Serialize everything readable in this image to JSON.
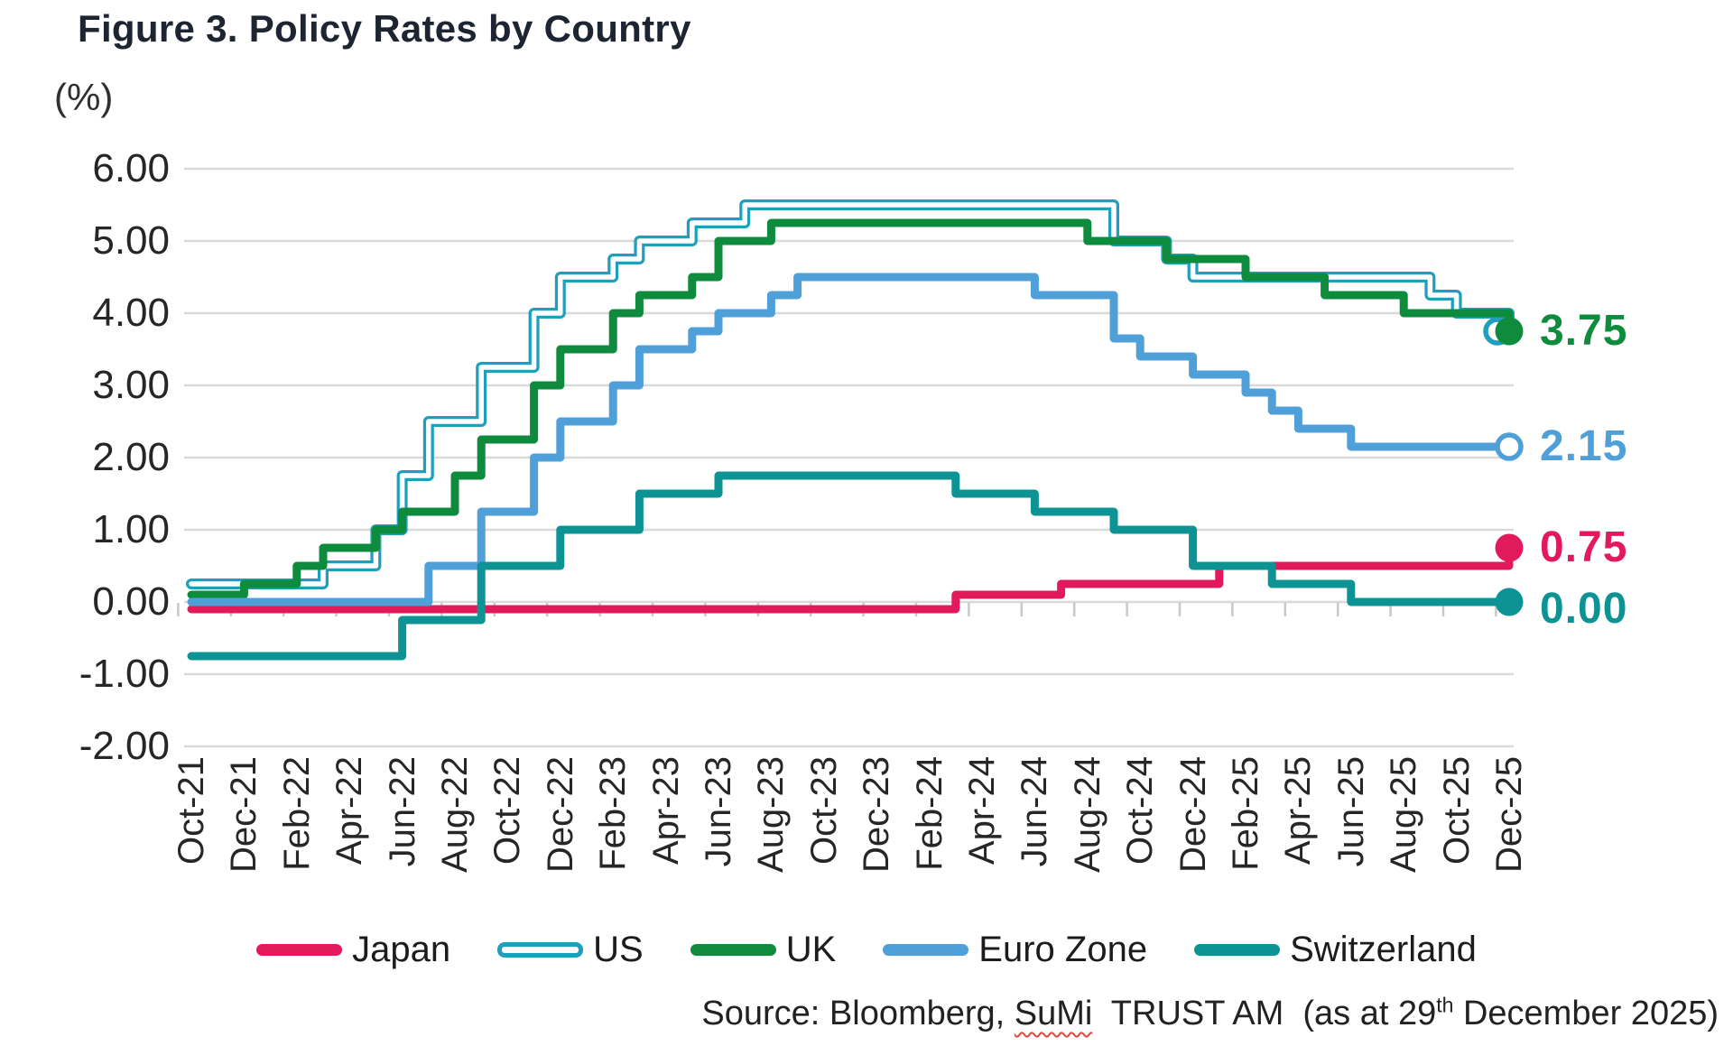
{
  "title": "Figure 3. Policy Rates by Country",
  "y_axis": {
    "unit_label": "(%)",
    "ticks": [
      "6.00",
      "5.00",
      "4.00",
      "3.00",
      "2.00",
      "1.00",
      "0.00",
      "-1.00",
      "-2.00"
    ]
  },
  "x_axis": {
    "tick_labels": [
      "Oct-21",
      "Dec-21",
      "Feb-22",
      "Apr-22",
      "Jun-22",
      "Aug-22",
      "Oct-22",
      "Dec-22",
      "Feb-23",
      "Apr-23",
      "Jun-23",
      "Aug-23",
      "Oct-23",
      "Dec-23",
      "Feb-24",
      "Apr-24",
      "Jun-24",
      "Aug-24",
      "Oct-24",
      "Dec-24",
      "Feb-25",
      "Apr-25",
      "Jun-25",
      "Aug-25",
      "Oct-25",
      "Dec-25"
    ]
  },
  "source": {
    "prefix": "Source: Bloomberg, ",
    "sumi": "SuMi",
    "mid": "  TRUST AM  (as at 29",
    "superscript": "th",
    "suffix": " December 2025)"
  },
  "chart_data": {
    "type": "line",
    "title": "Figure 3. Policy Rates by Country",
    "ylabel": "(%)",
    "ylim": [
      -2,
      6
    ],
    "y_step": 1,
    "grid": true,
    "legend_position": "bottom",
    "x": [
      "Oct-21",
      "Nov-21",
      "Dec-21",
      "Jan-22",
      "Feb-22",
      "Mar-22",
      "Apr-22",
      "May-22",
      "Jun-22",
      "Jul-22",
      "Aug-22",
      "Sep-22",
      "Oct-22",
      "Nov-22",
      "Dec-22",
      "Jan-23",
      "Feb-23",
      "Mar-23",
      "Apr-23",
      "May-23",
      "Jun-23",
      "Jul-23",
      "Aug-23",
      "Sep-23",
      "Oct-23",
      "Nov-23",
      "Dec-23",
      "Jan-24",
      "Feb-24",
      "Mar-24",
      "Apr-24",
      "May-24",
      "Jun-24",
      "Jul-24",
      "Aug-24",
      "Sep-24",
      "Oct-24",
      "Nov-24",
      "Dec-24",
      "Jan-25",
      "Feb-25",
      "Mar-25",
      "Apr-25",
      "May-25",
      "Jun-25",
      "Jul-25",
      "Aug-25",
      "Sep-25",
      "Oct-25",
      "Nov-25",
      "Dec-25"
    ],
    "series": [
      {
        "name": "Japan",
        "color": "#e2195b",
        "style": "solid",
        "marker": "filled",
        "end_value_label": "0.75",
        "end_label_visible": true,
        "values": [
          -0.1,
          -0.1,
          -0.1,
          -0.1,
          -0.1,
          -0.1,
          -0.1,
          -0.1,
          -0.1,
          -0.1,
          -0.1,
          -0.1,
          -0.1,
          -0.1,
          -0.1,
          -0.1,
          -0.1,
          -0.1,
          -0.1,
          -0.1,
          -0.1,
          -0.1,
          -0.1,
          -0.1,
          -0.1,
          -0.1,
          -0.1,
          -0.1,
          -0.1,
          0.1,
          0.1,
          0.1,
          0.1,
          0.25,
          0.25,
          0.25,
          0.25,
          0.25,
          0.25,
          0.5,
          0.5,
          0.5,
          0.5,
          0.5,
          0.5,
          0.5,
          0.5,
          0.5,
          0.5,
          0.5,
          0.75
        ]
      },
      {
        "name": "US",
        "color": "#1f9fbd",
        "style": "double",
        "marker": "open",
        "marker_dx": -13,
        "end_value_label": "3.75",
        "end_label_visible": false,
        "values": [
          0.25,
          0.25,
          0.25,
          0.25,
          0.25,
          0.5,
          0.5,
          1.0,
          1.75,
          2.5,
          2.5,
          3.25,
          3.25,
          4.0,
          4.5,
          4.5,
          4.75,
          5.0,
          5.0,
          5.25,
          5.25,
          5.5,
          5.5,
          5.5,
          5.5,
          5.5,
          5.5,
          5.5,
          5.5,
          5.5,
          5.5,
          5.5,
          5.5,
          5.5,
          5.5,
          5.0,
          5.0,
          4.75,
          4.5,
          4.5,
          4.5,
          4.5,
          4.5,
          4.5,
          4.5,
          4.5,
          4.5,
          4.25,
          4.0,
          4.0,
          3.75
        ]
      },
      {
        "name": "UK",
        "color": "#0e8b3d",
        "style": "solid",
        "marker": "filled",
        "end_value_label": "3.75",
        "end_label_visible": true,
        "values": [
          0.1,
          0.1,
          0.25,
          0.25,
          0.5,
          0.75,
          0.75,
          1.0,
          1.25,
          1.25,
          1.75,
          2.25,
          2.25,
          3.0,
          3.5,
          3.5,
          4.0,
          4.25,
          4.25,
          4.5,
          5.0,
          5.0,
          5.25,
          5.25,
          5.25,
          5.25,
          5.25,
          5.25,
          5.25,
          5.25,
          5.25,
          5.25,
          5.25,
          5.25,
          5.0,
          5.0,
          5.0,
          4.75,
          4.75,
          4.75,
          4.5,
          4.5,
          4.5,
          4.25,
          4.25,
          4.25,
          4.0,
          4.0,
          4.0,
          4.0,
          3.75
        ]
      },
      {
        "name": "Euro Zone",
        "color": "#4f9fd9",
        "style": "solid",
        "marker": "open",
        "end_value_label": "2.15",
        "end_label_visible": true,
        "values": [
          0.0,
          0.0,
          0.0,
          0.0,
          0.0,
          0.0,
          0.0,
          0.0,
          0.0,
          0.5,
          0.5,
          1.25,
          1.25,
          2.0,
          2.5,
          2.5,
          3.0,
          3.5,
          3.5,
          3.75,
          4.0,
          4.0,
          4.25,
          4.5,
          4.5,
          4.5,
          4.5,
          4.5,
          4.5,
          4.5,
          4.5,
          4.5,
          4.25,
          4.25,
          4.25,
          3.65,
          3.4,
          3.4,
          3.15,
          3.15,
          2.9,
          2.65,
          2.4,
          2.4,
          2.15,
          2.15,
          2.15,
          2.15,
          2.15,
          2.15,
          2.15
        ]
      },
      {
        "name": "Switzerland",
        "color": "#0d9394",
        "style": "solid",
        "marker": "filled",
        "end_value_label": "0.00",
        "end_label_visible": true,
        "end_label_dy": 8,
        "values": [
          -0.75,
          -0.75,
          -0.75,
          -0.75,
          -0.75,
          -0.75,
          -0.75,
          -0.75,
          -0.25,
          -0.25,
          -0.25,
          0.5,
          0.5,
          0.5,
          1.0,
          1.0,
          1.0,
          1.5,
          1.5,
          1.5,
          1.75,
          1.75,
          1.75,
          1.75,
          1.75,
          1.75,
          1.75,
          1.75,
          1.75,
          1.5,
          1.5,
          1.5,
          1.25,
          1.25,
          1.25,
          1.0,
          1.0,
          1.0,
          0.5,
          0.5,
          0.5,
          0.25,
          0.25,
          0.25,
          0.0,
          0.0,
          0.0,
          0.0,
          0.0,
          0.0,
          0.0
        ]
      }
    ]
  }
}
